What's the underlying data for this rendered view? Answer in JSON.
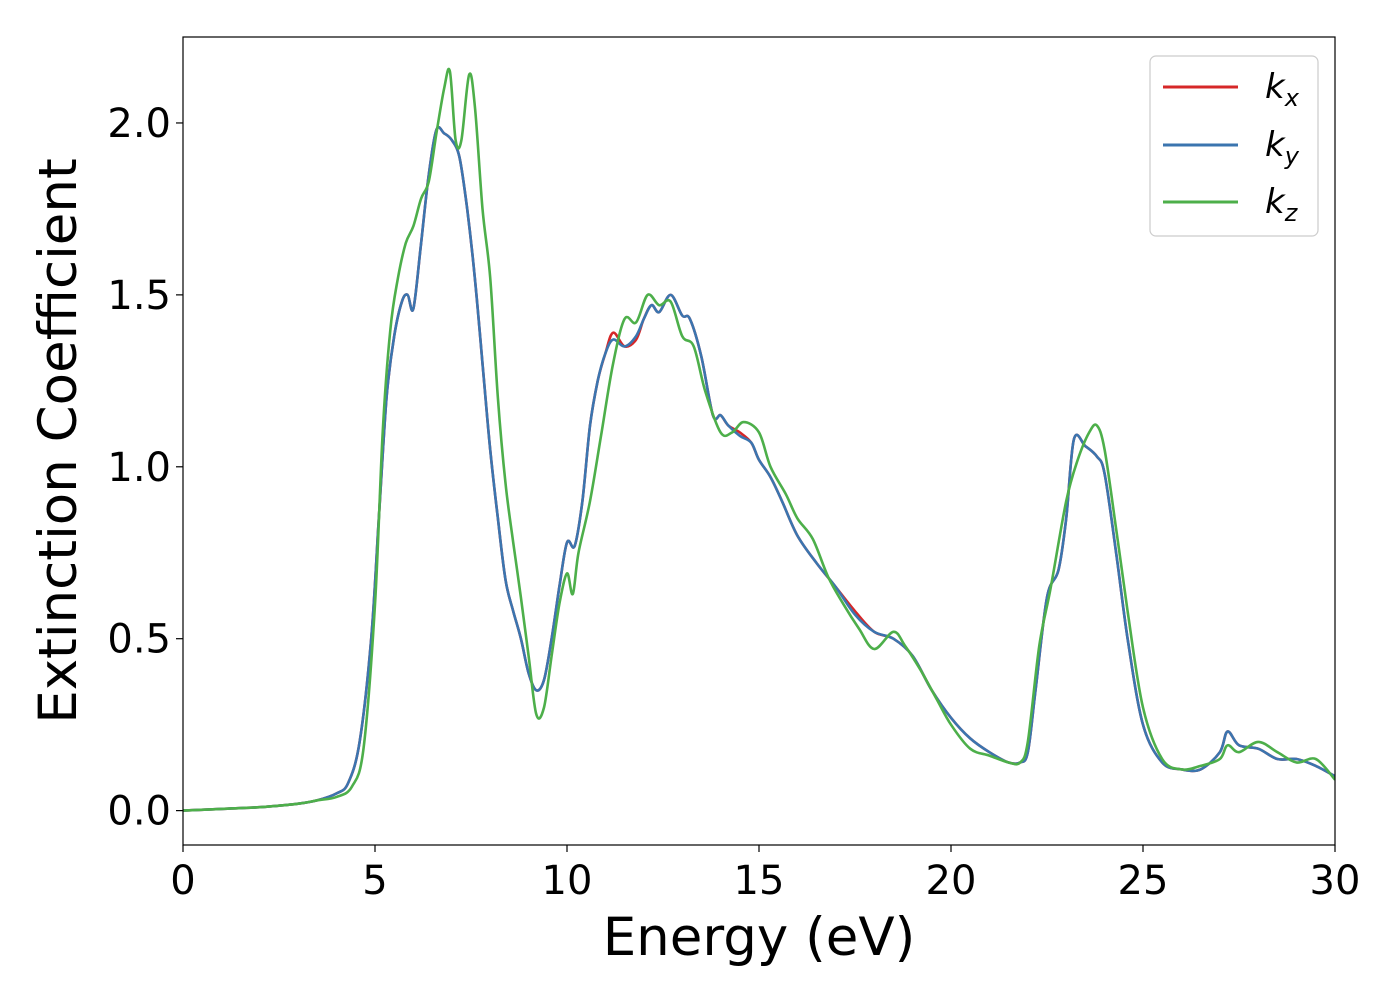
{
  "chart_data": {
    "type": "line",
    "title": "",
    "xlabel": "Energy (eV)",
    "ylabel": "Extinction Coefficient",
    "xlim": [
      0,
      30
    ],
    "ylim": [
      -0.1,
      2.25
    ],
    "xticks": [
      "0",
      "5",
      "10",
      "15",
      "20",
      "25",
      "30"
    ],
    "yticks": [
      "0.0",
      "0.5",
      "1.0",
      "1.5",
      "2.0"
    ],
    "grid": false,
    "legend_position": "top-right",
    "series": [
      {
        "name": "k_x",
        "label_main": "k",
        "label_sub": "x",
        "color": "#d62728",
        "x": [
          0,
          1,
          2,
          3,
          3.5,
          4,
          4.3,
          4.6,
          4.9,
          5.1,
          5.3,
          5.5,
          5.7,
          5.85,
          6.0,
          6.2,
          6.4,
          6.6,
          6.8,
          7.0,
          7.2,
          7.4,
          7.6,
          7.8,
          8.0,
          8.2,
          8.4,
          8.6,
          8.8,
          9.0,
          9.2,
          9.4,
          9.6,
          9.8,
          10.0,
          10.2,
          10.4,
          10.6,
          10.8,
          11.0,
          11.2,
          11.5,
          11.8,
          12.0,
          12.2,
          12.4,
          12.7,
          13.0,
          13.2,
          13.5,
          13.8,
          14.0,
          14.2,
          14.5,
          14.8,
          15.0,
          15.3,
          15.6,
          16.0,
          16.5,
          17.0,
          17.5,
          18.0,
          18.5,
          19.0,
          19.5,
          20.0,
          20.5,
          21.0,
          21.5,
          21.8,
          22.0,
          22.2,
          22.5,
          22.8,
          23.0,
          23.2,
          23.5,
          23.8,
          24.0,
          24.3,
          24.6,
          25.0,
          25.5,
          26.0,
          26.5,
          27.0,
          27.2,
          27.5,
          28.0,
          28.5,
          29.0,
          29.5,
          30.0
        ],
        "y": [
          0.0,
          0.005,
          0.01,
          0.02,
          0.03,
          0.05,
          0.08,
          0.2,
          0.5,
          0.85,
          1.2,
          1.38,
          1.48,
          1.5,
          1.46,
          1.65,
          1.85,
          1.98,
          1.97,
          1.95,
          1.9,
          1.75,
          1.55,
          1.3,
          1.05,
          0.85,
          0.67,
          0.58,
          0.5,
          0.4,
          0.35,
          0.38,
          0.5,
          0.65,
          0.78,
          0.77,
          0.9,
          1.12,
          1.25,
          1.33,
          1.39,
          1.35,
          1.37,
          1.43,
          1.47,
          1.45,
          1.5,
          1.44,
          1.43,
          1.32,
          1.15,
          1.15,
          1.12,
          1.1,
          1.07,
          1.02,
          0.97,
          0.9,
          0.8,
          0.72,
          0.65,
          0.58,
          0.52,
          0.5,
          0.45,
          0.35,
          0.27,
          0.21,
          0.17,
          0.14,
          0.14,
          0.17,
          0.35,
          0.62,
          0.7,
          0.85,
          1.08,
          1.06,
          1.03,
          0.98,
          0.75,
          0.5,
          0.25,
          0.14,
          0.12,
          0.12,
          0.17,
          0.23,
          0.19,
          0.18,
          0.15,
          0.15,
          0.13,
          0.1
        ]
      },
      {
        "name": "k_y",
        "label_main": "k",
        "label_sub": "y",
        "color": "#3b75af",
        "x": [
          0,
          1,
          2,
          3,
          3.5,
          4,
          4.3,
          4.6,
          4.9,
          5.1,
          5.3,
          5.5,
          5.7,
          5.85,
          6.0,
          6.2,
          6.4,
          6.6,
          6.8,
          7.0,
          7.2,
          7.4,
          7.6,
          7.8,
          8.0,
          8.2,
          8.4,
          8.6,
          8.8,
          9.0,
          9.2,
          9.4,
          9.6,
          9.8,
          10.0,
          10.2,
          10.4,
          10.6,
          10.8,
          11.0,
          11.2,
          11.5,
          11.8,
          12.0,
          12.2,
          12.4,
          12.7,
          13.0,
          13.2,
          13.5,
          13.8,
          14.0,
          14.2,
          14.5,
          14.8,
          15.0,
          15.3,
          15.6,
          16.0,
          16.5,
          17.0,
          17.5,
          18.0,
          18.5,
          19.0,
          19.5,
          20.0,
          20.5,
          21.0,
          21.5,
          21.8,
          22.0,
          22.2,
          22.5,
          22.8,
          23.0,
          23.2,
          23.5,
          23.8,
          24.0,
          24.3,
          24.6,
          25.0,
          25.5,
          26.0,
          26.5,
          27.0,
          27.2,
          27.5,
          28.0,
          28.5,
          29.0,
          29.5,
          30.0
        ],
        "y": [
          0.0,
          0.005,
          0.01,
          0.02,
          0.03,
          0.05,
          0.08,
          0.2,
          0.5,
          0.85,
          1.2,
          1.38,
          1.48,
          1.5,
          1.46,
          1.65,
          1.85,
          1.98,
          1.97,
          1.95,
          1.9,
          1.75,
          1.55,
          1.3,
          1.05,
          0.85,
          0.67,
          0.58,
          0.5,
          0.4,
          0.35,
          0.38,
          0.5,
          0.65,
          0.78,
          0.77,
          0.9,
          1.12,
          1.25,
          1.33,
          1.37,
          1.35,
          1.38,
          1.43,
          1.47,
          1.45,
          1.5,
          1.44,
          1.43,
          1.32,
          1.15,
          1.15,
          1.12,
          1.09,
          1.07,
          1.02,
          0.97,
          0.9,
          0.8,
          0.72,
          0.65,
          0.57,
          0.52,
          0.5,
          0.45,
          0.35,
          0.27,
          0.21,
          0.17,
          0.14,
          0.14,
          0.17,
          0.35,
          0.62,
          0.7,
          0.85,
          1.08,
          1.06,
          1.03,
          0.98,
          0.75,
          0.5,
          0.25,
          0.14,
          0.12,
          0.12,
          0.17,
          0.23,
          0.19,
          0.18,
          0.15,
          0.15,
          0.13,
          0.1
        ]
      },
      {
        "name": "k_z",
        "label_main": "k",
        "label_sub": "z",
        "color": "#4daf4a",
        "x": [
          0,
          1,
          2,
          3,
          3.5,
          4,
          4.4,
          4.7,
          5.0,
          5.2,
          5.4,
          5.6,
          5.8,
          6.0,
          6.2,
          6.4,
          6.6,
          6.8,
          6.95,
          7.1,
          7.25,
          7.45,
          7.6,
          7.8,
          8.0,
          8.2,
          8.4,
          8.6,
          8.8,
          9.0,
          9.2,
          9.4,
          9.6,
          9.8,
          10.0,
          10.15,
          10.3,
          10.6,
          10.9,
          11.2,
          11.5,
          11.8,
          12.1,
          12.4,
          12.7,
          13.0,
          13.3,
          13.6,
          14.0,
          14.3,
          14.6,
          15.0,
          15.3,
          15.7,
          16.0,
          16.4,
          16.8,
          17.2,
          17.6,
          18.0,
          18.5,
          18.8,
          19.2,
          19.6,
          20.0,
          20.5,
          21.0,
          21.5,
          21.8,
          22.0,
          22.3,
          22.6,
          23.0,
          23.3,
          23.6,
          23.8,
          24.0,
          24.3,
          24.6,
          25.0,
          25.5,
          26.0,
          26.5,
          27.0,
          27.2,
          27.5,
          28.0,
          28.5,
          29.0,
          29.5,
          30.0
        ],
        "y": [
          0.0,
          0.005,
          0.01,
          0.02,
          0.03,
          0.04,
          0.07,
          0.18,
          0.6,
          1.1,
          1.4,
          1.55,
          1.65,
          1.7,
          1.78,
          1.83,
          1.97,
          2.1,
          2.15,
          1.95,
          1.95,
          2.14,
          2.05,
          1.75,
          1.55,
          1.2,
          0.95,
          0.78,
          0.62,
          0.45,
          0.28,
          0.3,
          0.45,
          0.6,
          0.69,
          0.63,
          0.75,
          0.9,
          1.1,
          1.3,
          1.43,
          1.42,
          1.5,
          1.47,
          1.48,
          1.38,
          1.35,
          1.22,
          1.1,
          1.1,
          1.13,
          1.1,
          1.0,
          0.92,
          0.85,
          0.79,
          0.68,
          0.6,
          0.53,
          0.47,
          0.52,
          0.48,
          0.41,
          0.33,
          0.25,
          0.18,
          0.16,
          0.14,
          0.14,
          0.2,
          0.48,
          0.65,
          0.9,
          1.02,
          1.1,
          1.12,
          1.05,
          0.82,
          0.58,
          0.3,
          0.15,
          0.12,
          0.13,
          0.15,
          0.19,
          0.17,
          0.2,
          0.17,
          0.14,
          0.15,
          0.09
        ]
      }
    ]
  }
}
